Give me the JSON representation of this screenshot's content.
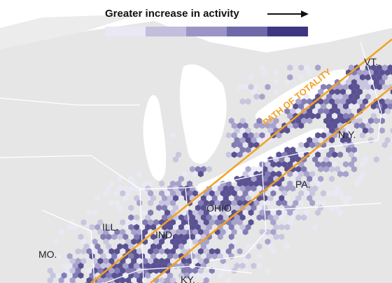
{
  "legend": {
    "title": "Greater increase in activity",
    "colors": [
      "#e9e9f5",
      "#c2bedd",
      "#9b95c7",
      "#6f68a9",
      "#3f3682"
    ]
  },
  "path_label": "PATH OF TOTALITY",
  "path_color": "#f2a122",
  "states": [
    {
      "label": "VT."
    },
    {
      "label": "N.Y."
    },
    {
      "label": "PA."
    },
    {
      "label": "OHIO"
    },
    {
      "label": "IND."
    },
    {
      "label": "ILL."
    },
    {
      "label": "MO."
    },
    {
      "label": "KY."
    }
  ]
}
